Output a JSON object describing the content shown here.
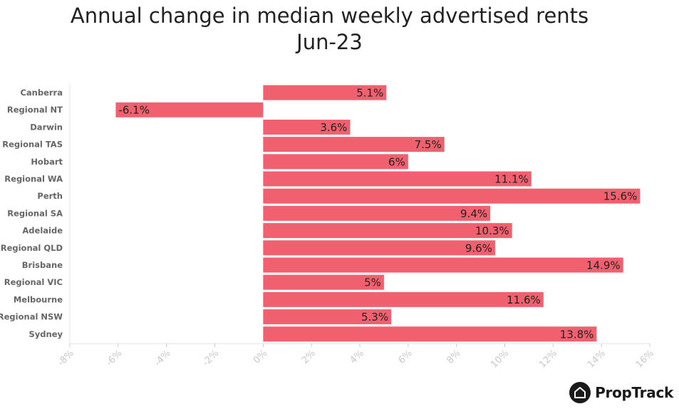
{
  "chart_data": {
    "type": "bar",
    "orientation": "horizontal",
    "title": "Annual change in median weekly advertised rents",
    "subtitle": "Jun-23",
    "categories": [
      "Canberra",
      "Regional NT",
      "Darwin",
      "Regional TAS",
      "Hobart",
      "Regional WA",
      "Perth",
      "Regional SA",
      "Adelaide",
      "Regional QLD",
      "Brisbane",
      "Regional VIC",
      "Melbourne",
      "Regional NSW",
      "Sydney"
    ],
    "values": [
      5.1,
      -6.1,
      3.6,
      7.5,
      6,
      11.1,
      15.6,
      9.4,
      10.3,
      9.6,
      14.9,
      5,
      11.6,
      5.3,
      13.8
    ],
    "data_labels": [
      "5.1%",
      "-6.1%",
      "3.6%",
      "7.5%",
      "6%",
      "11.1%",
      "15.6%",
      "9.4%",
      "10.3%",
      "9.6%",
      "14.9%",
      "5%",
      "11.6%",
      "5.3%",
      "13.8%"
    ],
    "xlim": [
      -8,
      16
    ],
    "x_ticks": [
      "-8%",
      "-6%",
      "-4%",
      "-2%",
      "0%",
      "2%",
      "4%",
      "6%",
      "8%",
      "10%",
      "12%",
      "14%",
      "16%"
    ],
    "xlabel": "",
    "ylabel": "",
    "bar_color": "#f0606e",
    "grid": false,
    "legend": "none"
  },
  "brand": {
    "name": "PropTrack",
    "icon": "house-icon"
  }
}
